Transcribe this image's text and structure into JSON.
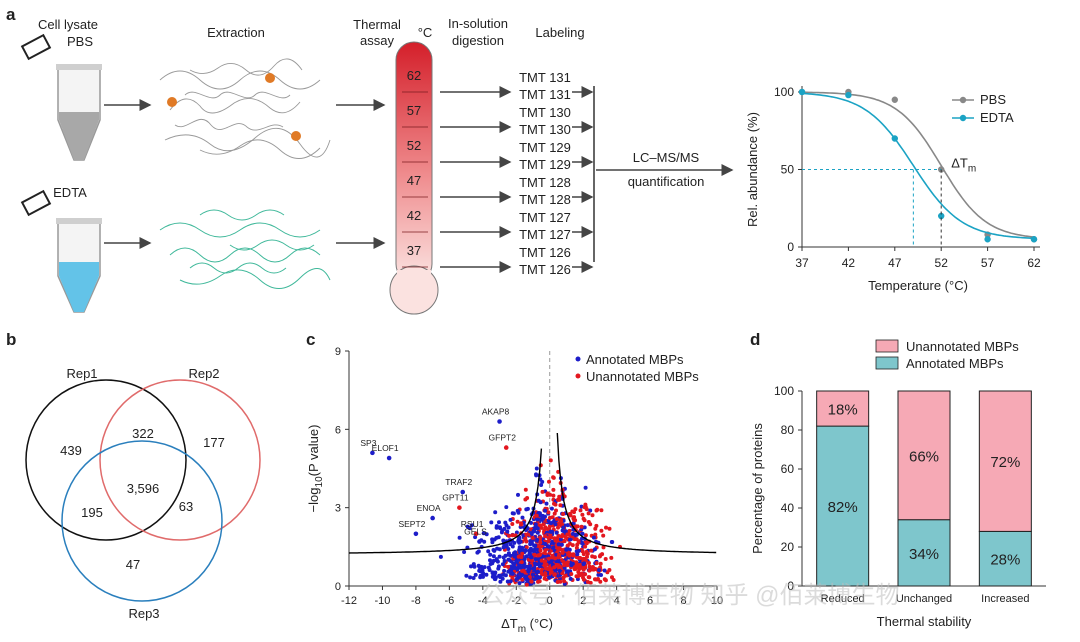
{
  "panel_labels": {
    "a": "a",
    "b": "b",
    "c": "c",
    "d": "d"
  },
  "workflow": {
    "sample1": "Cell lysate",
    "sample1_buffer": "PBS",
    "sample2": "EDTA",
    "step_extraction": "Extraction",
    "step_thermal_1": "Thermal",
    "step_thermal_2": "assay",
    "temp_unit": "°C",
    "temps": [
      "62",
      "57",
      "52",
      "47",
      "42",
      "37"
    ],
    "step_digestion_1": "In-solution",
    "step_digestion_2": "digestion",
    "step_labeling": "Labeling",
    "tmt_pbs": [
      "TMT 131",
      "TMT 130",
      "TMT 129",
      "TMT 128",
      "TMT 127",
      "TMT 126"
    ],
    "tmt_edta": [
      "TMT 131",
      "TMT 130",
      "TMT 129",
      "TMT 128",
      "TMT 127",
      "TMT 126"
    ],
    "ms_1": "LC–MS/MS",
    "ms_2": "quantification",
    "colors": {
      "pbs_line": "#888888",
      "edta_line": "#1ba3c4",
      "tmt_pbs": "#555555",
      "tmt_edta": "#1a9fbf",
      "thermo_red": "#d9232e",
      "pink_bar": "#f6a9b5",
      "teal_bar": "#7ec6cc",
      "blue_dot": "#1d1dc9",
      "red_dot": "#e3171f"
    }
  },
  "venn": {
    "sets": [
      "Rep1",
      "Rep2",
      "Rep3"
    ],
    "regions": {
      "rep1_only": "439",
      "rep2_only": "177",
      "rep3_only": "47",
      "rep1_rep2": "322",
      "rep1_rep3": "195",
      "rep2_rep3": "63",
      "all": "3,596"
    },
    "colors": {
      "rep1": "#111111",
      "rep2": "#e06b6b",
      "rep3": "#2a7fbd"
    }
  },
  "watermark": "公众号 · 佰莱博生物 知乎 @佰莱博生物",
  "chart_data": [
    {
      "panel": "a",
      "type": "line",
      "xlabel": "Temperature (°C)",
      "ylabel": "Rel. abundance (%)",
      "x": [
        37,
        42,
        47,
        52,
        57,
        62
      ],
      "xlim": [
        37,
        62
      ],
      "ylim": [
        0,
        100
      ],
      "yticks": [
        0,
        50,
        100
      ],
      "series": [
        {
          "name": "PBS",
          "values": [
            100,
            100,
            95,
            50,
            8,
            5
          ]
        },
        {
          "name": "EDTA",
          "values": [
            100,
            98,
            70,
            20,
            5,
            5
          ]
        }
      ],
      "annotation": "ΔT",
      "annotation_sub": "m",
      "legend": "top-right",
      "grid": false
    },
    {
      "panel": "c",
      "type": "scatter",
      "xlabel": "ΔT",
      "xlabel_sub": "m",
      "xlabel_unit": "(°C)",
      "ylabel_pre": "−log",
      "ylabel_sub": "10",
      "ylabel_post": "(P value)",
      "xlim": [
        -12,
        10
      ],
      "ylim": [
        0,
        9
      ],
      "xticks": [
        -12,
        -10,
        -8,
        -6,
        -4,
        -2,
        0,
        2,
        4,
        6,
        8,
        10
      ],
      "yticks": [
        0,
        3,
        6,
        9
      ],
      "series": [
        {
          "name": "Annotated MBPs"
        },
        {
          "name": "Unannotated MBPs"
        }
      ],
      "labeled_points": [
        {
          "label": "AKAP8",
          "x": -3.0,
          "y": 6.3,
          "group": "Annotated MBPs"
        },
        {
          "label": "SP3",
          "x": -10.6,
          "y": 5.1,
          "group": "Annotated MBPs"
        },
        {
          "label": "ELOF1",
          "x": -9.6,
          "y": 4.9,
          "group": "Annotated MBPs"
        },
        {
          "label": "GFPT2",
          "x": -2.6,
          "y": 5.3,
          "group": "Unannotated MBPs"
        },
        {
          "label": "TRAF2",
          "x": -5.2,
          "y": 3.6,
          "group": "Annotated MBPs"
        },
        {
          "label": "GPT11",
          "x": -5.4,
          "y": 3.0,
          "group": "Unannotated MBPs"
        },
        {
          "label": "ENOA",
          "x": -7.0,
          "y": 2.6,
          "group": "Annotated MBPs"
        },
        {
          "label": "SEPT2",
          "x": -8.0,
          "y": 2.0,
          "group": "Annotated MBPs"
        },
        {
          "label": "RSU1",
          "x": -4.4,
          "y": 2.0,
          "group": "Unannotated MBPs"
        },
        {
          "label": "GELS",
          "x": -4.2,
          "y": 1.7,
          "group": "Annotated MBPs"
        }
      ],
      "legend": "top-right"
    },
    {
      "panel": "d",
      "type": "bar",
      "stacked": true,
      "xlabel": "Thermal stability",
      "ylabel": "Percentage of proteins",
      "categories": [
        "Reduced",
        "Unchanged",
        "Increased"
      ],
      "ylim": [
        0,
        100
      ],
      "yticks": [
        0,
        20,
        40,
        60,
        80,
        100
      ],
      "series": [
        {
          "name": "Annotated MBPs",
          "values": [
            82,
            34,
            28
          ],
          "labels": [
            "82%",
            "34%",
            "28%"
          ]
        },
        {
          "name": "Unannotated MBPs",
          "values": [
            18,
            66,
            72
          ],
          "labels": [
            "18%",
            "66%",
            "72%"
          ]
        }
      ],
      "legend": "top"
    }
  ]
}
